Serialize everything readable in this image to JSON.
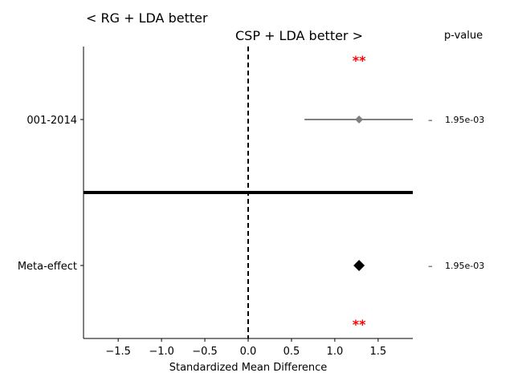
{
  "chart_data": {
    "type": "scatter",
    "subtype": "forest-plot",
    "left_label": "< RG + LDA better",
    "right_label": "CSP + LDA better >",
    "pvalue_header": "p-value",
    "xlabel": "Standardized Mean Difference",
    "xlim": [
      -1.9,
      1.9
    ],
    "xticks": [
      -1.5,
      -1.0,
      -0.5,
      0.0,
      0.5,
      1.0,
      1.5
    ],
    "xtick_labels": [
      "−1.5",
      "−1.0",
      "−0.5",
      "0.0",
      "0.5",
      "1.0",
      "1.5"
    ],
    "reference_line_x": 0.0,
    "grid": false,
    "rows": [
      {
        "label": "001-2014",
        "estimate": 1.28,
        "ci": [
          0.65,
          1.9
        ],
        "dash": "–",
        "pvalue": "1.95e-03",
        "color": "#808080",
        "marker": "diamond-small"
      },
      {
        "label": "Meta-effect",
        "estimate": 1.28,
        "ci": null,
        "dash": "–",
        "pvalue": "1.95e-03",
        "color": "#000000",
        "marker": "diamond-large"
      }
    ],
    "significance_marker": "**",
    "significance_x": 1.28,
    "significance_color": "#ff0000",
    "separator_color": "#000000"
  }
}
